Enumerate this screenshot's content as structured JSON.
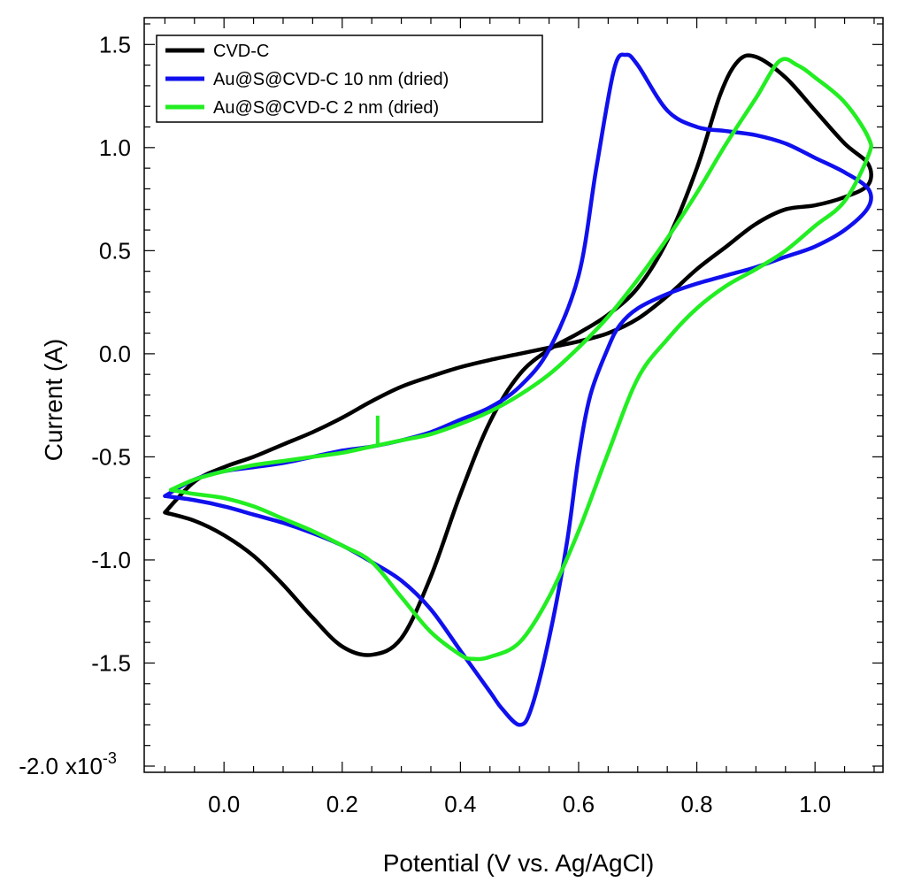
{
  "chart_data": {
    "type": "line",
    "xlabel": "Potential (V vs. Ag/AgCl)",
    "ylabel": "Current (A)",
    "y_exponent_label": "x10",
    "y_exponent_power": "-3",
    "y_scale": 0.001,
    "xlim": [
      -0.135,
      1.115
    ],
    "ylim": [
      -2.03,
      1.63
    ],
    "x_ticks": [
      {
        "v": 0.0,
        "label": "0.0"
      },
      {
        "v": 0.2,
        "label": "0.2"
      },
      {
        "v": 0.4,
        "label": "0.4"
      },
      {
        "v": 0.6,
        "label": "0.6"
      },
      {
        "v": 0.8,
        "label": "0.8"
      },
      {
        "v": 1.0,
        "label": "1.0"
      }
    ],
    "y_ticks": [
      {
        "v": 1.5,
        "label": "1.5"
      },
      {
        "v": 1.0,
        "label": "1.0"
      },
      {
        "v": 0.5,
        "label": "0.5"
      },
      {
        "v": 0.0,
        "label": "0.0"
      },
      {
        "v": -0.5,
        "label": "-0.5"
      },
      {
        "v": -1.0,
        "label": "-1.0"
      },
      {
        "v": -1.5,
        "label": "-1.5"
      },
      {
        "v": -2.0,
        "label": "-2.0"
      }
    ],
    "grid": false,
    "legend_position": "top-left",
    "series": [
      {
        "name": "CVD-C",
        "color": "#000000",
        "points": [
          [
            -0.1,
            -0.77
          ],
          [
            -0.05,
            -0.62
          ],
          [
            0.0,
            -0.55
          ],
          [
            0.05,
            -0.5
          ],
          [
            0.1,
            -0.44
          ],
          [
            0.15,
            -0.38
          ],
          [
            0.2,
            -0.31
          ],
          [
            0.25,
            -0.23
          ],
          [
            0.3,
            -0.16
          ],
          [
            0.35,
            -0.11
          ],
          [
            0.4,
            -0.065
          ],
          [
            0.45,
            -0.03
          ],
          [
            0.5,
            0.0
          ],
          [
            0.55,
            0.03
          ],
          [
            0.6,
            0.06
          ],
          [
            0.65,
            0.1
          ],
          [
            0.7,
            0.17
          ],
          [
            0.75,
            0.28
          ],
          [
            0.8,
            0.41
          ],
          [
            0.85,
            0.52
          ],
          [
            0.9,
            0.63
          ],
          [
            0.95,
            0.7
          ],
          [
            1.0,
            0.72
          ],
          [
            1.05,
            0.76
          ],
          [
            1.09,
            0.82
          ],
          [
            1.09,
            0.92
          ],
          [
            1.05,
            1.02
          ],
          [
            1.0,
            1.18
          ],
          [
            0.95,
            1.34
          ],
          [
            0.9,
            1.44
          ],
          [
            0.87,
            1.42
          ],
          [
            0.84,
            1.26
          ],
          [
            0.8,
            0.9
          ],
          [
            0.75,
            0.55
          ],
          [
            0.7,
            0.32
          ],
          [
            0.65,
            0.19
          ],
          [
            0.6,
            0.1
          ],
          [
            0.55,
            0.02
          ],
          [
            0.5,
            -0.1
          ],
          [
            0.45,
            -0.33
          ],
          [
            0.4,
            -0.68
          ],
          [
            0.35,
            -1.08
          ],
          [
            0.3,
            -1.38
          ],
          [
            0.25,
            -1.46
          ],
          [
            0.2,
            -1.42
          ],
          [
            0.15,
            -1.28
          ],
          [
            0.1,
            -1.12
          ],
          [
            0.05,
            -0.98
          ],
          [
            0.0,
            -0.88
          ],
          [
            -0.05,
            -0.81
          ],
          [
            -0.1,
            -0.77
          ]
        ]
      },
      {
        "name": "Au@S@CVD-C 10 nm (dried)",
        "color": "#1010ee",
        "points": [
          [
            -0.1,
            -0.69
          ],
          [
            -0.05,
            -0.61
          ],
          [
            0.0,
            -0.57
          ],
          [
            0.05,
            -0.55
          ],
          [
            0.1,
            -0.53
          ],
          [
            0.15,
            -0.5
          ],
          [
            0.2,
            -0.47
          ],
          [
            0.25,
            -0.45
          ],
          [
            0.3,
            -0.42
          ],
          [
            0.35,
            -0.38
          ],
          [
            0.4,
            -0.32
          ],
          [
            0.45,
            -0.26
          ],
          [
            0.5,
            -0.16
          ],
          [
            0.55,
            0.02
          ],
          [
            0.6,
            0.38
          ],
          [
            0.63,
            0.9
          ],
          [
            0.66,
            1.38
          ],
          [
            0.68,
            1.45
          ],
          [
            0.7,
            1.4
          ],
          [
            0.75,
            1.18
          ],
          [
            0.8,
            1.1
          ],
          [
            0.85,
            1.08
          ],
          [
            0.9,
            1.06
          ],
          [
            0.95,
            1.02
          ],
          [
            1.0,
            0.95
          ],
          [
            1.05,
            0.88
          ],
          [
            1.09,
            0.8
          ],
          [
            1.09,
            0.71
          ],
          [
            1.05,
            0.6
          ],
          [
            1.0,
            0.52
          ],
          [
            0.95,
            0.47
          ],
          [
            0.9,
            0.42
          ],
          [
            0.85,
            0.38
          ],
          [
            0.8,
            0.34
          ],
          [
            0.75,
            0.29
          ],
          [
            0.7,
            0.22
          ],
          [
            0.67,
            0.14
          ],
          [
            0.65,
            0.03
          ],
          [
            0.62,
            -0.2
          ],
          [
            0.6,
            -0.5
          ],
          [
            0.58,
            -0.92
          ],
          [
            0.55,
            -1.38
          ],
          [
            0.52,
            -1.72
          ],
          [
            0.5,
            -1.8
          ],
          [
            0.47,
            -1.72
          ],
          [
            0.45,
            -1.64
          ],
          [
            0.4,
            -1.44
          ],
          [
            0.35,
            -1.24
          ],
          [
            0.3,
            -1.1
          ],
          [
            0.25,
            -1.01
          ],
          [
            0.2,
            -0.93
          ],
          [
            0.15,
            -0.87
          ],
          [
            0.1,
            -0.82
          ],
          [
            0.05,
            -0.78
          ],
          [
            0.0,
            -0.74
          ],
          [
            -0.05,
            -0.71
          ],
          [
            -0.1,
            -0.69
          ]
        ]
      },
      {
        "name": "Au@S@CVD-C 2 nm (dried)",
        "color": "#22ee22",
        "points": [
          [
            -0.09,
            -0.66
          ],
          [
            -0.05,
            -0.61
          ],
          [
            0.0,
            -0.57
          ],
          [
            0.05,
            -0.54
          ],
          [
            0.1,
            -0.52
          ],
          [
            0.15,
            -0.5
          ],
          [
            0.2,
            -0.48
          ],
          [
            0.25,
            -0.45
          ],
          [
            0.3,
            -0.42
          ],
          [
            0.35,
            -0.39
          ],
          [
            0.4,
            -0.34
          ],
          [
            0.45,
            -0.28
          ],
          [
            0.5,
            -0.2
          ],
          [
            0.55,
            -0.1
          ],
          [
            0.6,
            0.03
          ],
          [
            0.65,
            0.18
          ],
          [
            0.7,
            0.36
          ],
          [
            0.75,
            0.56
          ],
          [
            0.8,
            0.78
          ],
          [
            0.85,
            1.02
          ],
          [
            0.9,
            1.24
          ],
          [
            0.94,
            1.42
          ],
          [
            0.97,
            1.4
          ],
          [
            1.0,
            1.34
          ],
          [
            1.05,
            1.22
          ],
          [
            1.09,
            1.05
          ],
          [
            1.09,
            0.96
          ],
          [
            1.05,
            0.74
          ],
          [
            1.0,
            0.62
          ],
          [
            0.95,
            0.5
          ],
          [
            0.9,
            0.41
          ],
          [
            0.85,
            0.33
          ],
          [
            0.8,
            0.22
          ],
          [
            0.75,
            0.07
          ],
          [
            0.7,
            -0.12
          ],
          [
            0.65,
            -0.48
          ],
          [
            0.6,
            -0.86
          ],
          [
            0.55,
            -1.18
          ],
          [
            0.5,
            -1.4
          ],
          [
            0.45,
            -1.47
          ],
          [
            0.42,
            -1.48
          ],
          [
            0.4,
            -1.46
          ],
          [
            0.35,
            -1.35
          ],
          [
            0.3,
            -1.18
          ],
          [
            0.25,
            -1.01
          ],
          [
            0.2,
            -0.93
          ],
          [
            0.15,
            -0.86
          ],
          [
            0.1,
            -0.8
          ],
          [
            0.05,
            -0.74
          ],
          [
            0.0,
            -0.7
          ],
          [
            -0.05,
            -0.68
          ],
          [
            -0.09,
            -0.66
          ]
        ]
      }
    ]
  }
}
